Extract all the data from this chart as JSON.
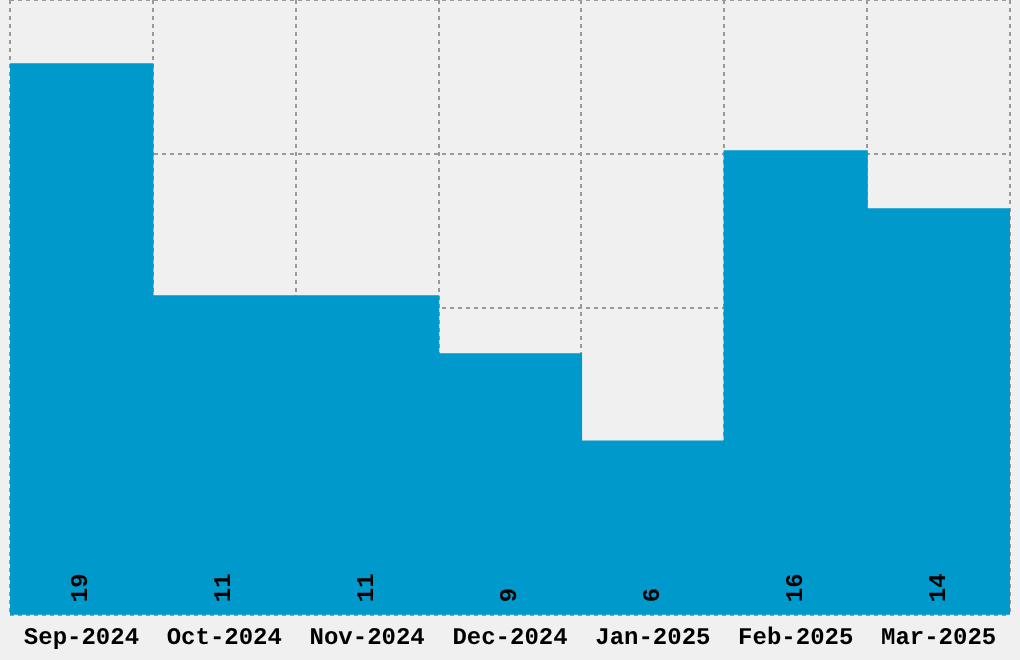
{
  "chart_data": {
    "type": "bar",
    "categories": [
      "Sep-2024",
      "Oct-2024",
      "Nov-2024",
      "Dec-2024",
      "Jan-2025",
      "Feb-2025",
      "Mar-2025"
    ],
    "values": [
      19,
      11,
      11,
      9,
      6,
      16,
      14
    ],
    "color": "#0099cc",
    "data_labels": true,
    "ylim": [
      0,
      21.2
    ],
    "grid": true,
    "tick_labels": "x"
  }
}
